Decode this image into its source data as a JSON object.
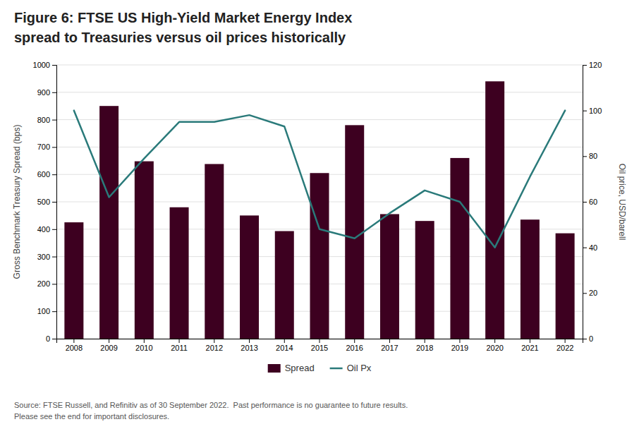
{
  "chart_data": {
    "type": "bar",
    "title": "Figure 6: FTSE US High-Yield Market Energy Index",
    "subtitle": "spread to Treasuries versus oil prices historically",
    "categories": [
      "2008",
      "2009",
      "2010",
      "2011",
      "2012",
      "2013",
      "2014",
      "2015",
      "2016",
      "2017",
      "2018",
      "2019",
      "2020",
      "2021",
      "2022"
    ],
    "series": [
      {
        "name": "Spread",
        "type": "bar",
        "color": "#3d0020",
        "values": [
          425,
          850,
          648,
          480,
          638,
          450,
          393,
          605,
          780,
          455,
          430,
          660,
          940,
          435,
          385
        ]
      },
      {
        "name": "Oil Px",
        "type": "line",
        "color": "#2a7a7a",
        "axis": "y2",
        "values": [
          100,
          62,
          79,
          95,
          95,
          98,
          93,
          48,
          44,
          55,
          65,
          60,
          40,
          71,
          100
        ]
      }
    ],
    "ylabel": "Gross Benchmark Treasury Spread (bps)",
    "y2label": "Oil price, USD/barell",
    "ylim": [
      0,
      1000
    ],
    "yticks": [
      0,
      100,
      200,
      300,
      400,
      500,
      600,
      700,
      800,
      900,
      1000
    ],
    "y2lim": [
      0,
      120
    ],
    "y2ticks": [
      0,
      20,
      40,
      60,
      80,
      100,
      120
    ],
    "grid": true,
    "legend": "bottom",
    "annotations": [
      "Source: FTSE Russell, and Refinitiv as of 30 September 2022.  Past performance is no guarantee to future results.",
      "Please see the end for important disclosures."
    ]
  }
}
